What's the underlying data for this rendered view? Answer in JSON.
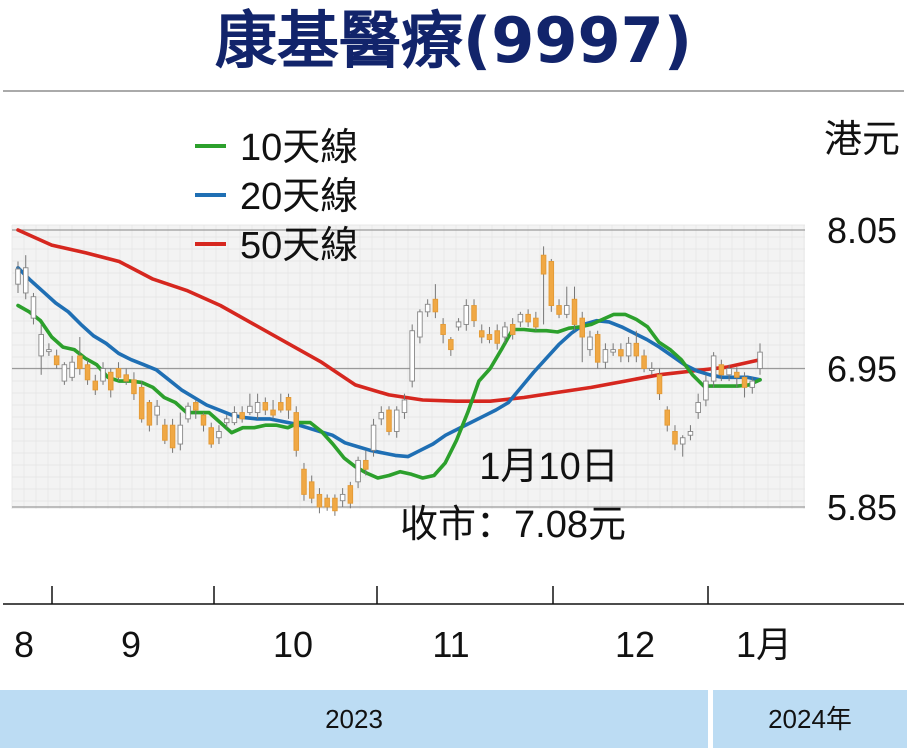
{
  "title": "康基醫療(9997)",
  "chart_data": {
    "type": "candlestick",
    "unit_label": "港元",
    "yaxis": {
      "ylim": [
        5.3,
        8.6
      ],
      "ticks": [
        {
          "value": 8.05,
          "label": "8.05"
        },
        {
          "value": 6.95,
          "label": "6.95"
        },
        {
          "value": 5.85,
          "label": "5.85"
        }
      ]
    },
    "legend": [
      {
        "name": "10天線",
        "color": "#2ca02c"
      },
      {
        "name": "20天線",
        "color": "#1f6fb4"
      },
      {
        "name": "50天線",
        "color": "#d6271f"
      }
    ],
    "month_labels": [
      "8",
      "9",
      "10",
      "11",
      "12",
      "1月"
    ],
    "annotation": {
      "line1": "1月10日",
      "line2": "收市：7.08元"
    },
    "years": [
      "2023",
      "2024年"
    ],
    "ma10": [
      7.45,
      7.4,
      7.33,
      7.2,
      7.12,
      7.1,
      7.03,
      6.98,
      6.88,
      6.85,
      6.85,
      6.84,
      6.8,
      6.72,
      6.68,
      6.6,
      6.6,
      6.6,
      6.52,
      6.44,
      6.48,
      6.48,
      6.5,
      6.5,
      6.48,
      6.52,
      6.52,
      6.45,
      6.35,
      6.24,
      6.17,
      6.12,
      6.08,
      6.1,
      6.13,
      6.11,
      6.08,
      6.1,
      6.2,
      6.38,
      6.6,
      6.85,
      6.95,
      7.1,
      7.26,
      7.26,
      7.25,
      7.25,
      7.24,
      7.27,
      7.28,
      7.3,
      7.34,
      7.38,
      7.38,
      7.34,
      7.28,
      7.16,
      7.1,
      7.02,
      6.9,
      6.81,
      6.81,
      6.81,
      6.81,
      6.82,
      6.86
    ],
    "ma20": [
      7.75,
      7.65,
      7.56,
      7.47,
      7.4,
      7.3,
      7.21,
      7.15,
      7.07,
      7.02,
      6.98,
      6.94,
      6.86,
      6.78,
      6.72,
      6.66,
      6.62,
      6.58,
      6.56,
      6.55,
      6.55,
      6.53,
      6.51,
      6.48,
      6.45,
      6.42,
      6.36,
      6.33,
      6.3,
      6.28,
      6.26,
      6.25,
      6.3,
      6.35,
      6.42,
      6.47,
      6.52,
      6.57,
      6.62,
      6.68,
      6.8,
      6.92,
      7.03,
      7.14,
      7.23,
      7.3,
      7.33,
      7.32,
      7.28,
      7.23,
      7.18,
      7.12,
      7.05,
      6.98,
      6.93,
      6.9,
      6.88,
      6.88,
      6.88,
      6.86
    ],
    "ma50": [
      8.05,
      7.93,
      7.87,
      7.8,
      7.66,
      7.57,
      7.45,
      7.3,
      7.15,
      7.0,
      6.82,
      6.74,
      6.7,
      6.69,
      6.69,
      6.72,
      6.76,
      6.8,
      6.85,
      6.9,
      6.93,
      6.96,
      7.02
    ],
    "candles": [
      [
        7.62,
        7.74,
        7.55,
        7.8
      ],
      [
        7.55,
        7.75,
        7.5,
        7.85
      ],
      [
        7.35,
        7.52,
        7.3,
        7.55
      ],
      [
        7.05,
        7.22,
        6.9,
        7.3
      ],
      [
        7.1,
        7.1,
        7.05,
        7.15
      ],
      [
        7.05,
        6.98,
        6.95,
        7.1
      ],
      [
        6.85,
        6.98,
        6.82,
        7.0
      ],
      [
        6.88,
        7.0,
        6.85,
        7.05
      ],
      [
        7.05,
        6.95,
        6.9,
        7.2
      ],
      [
        6.98,
        6.86,
        6.82,
        7.02
      ],
      [
        6.85,
        6.78,
        6.74,
        6.9
      ],
      [
        6.85,
        6.95,
        6.82,
        7.0
      ],
      [
        6.92,
        6.78,
        6.72,
        6.95
      ],
      [
        6.95,
        6.88,
        6.85,
        7.0
      ],
      [
        6.9,
        6.85,
        6.82,
        6.95
      ],
      [
        6.86,
        6.75,
        6.7,
        6.92
      ],
      [
        6.8,
        6.55,
        6.52,
        6.85
      ],
      [
        6.68,
        6.5,
        6.45,
        6.7
      ],
      [
        6.58,
        6.65,
        6.5,
        6.7
      ],
      [
        6.5,
        6.38,
        6.35,
        6.55
      ],
      [
        6.5,
        6.32,
        6.28,
        6.55
      ],
      [
        6.35,
        6.5,
        6.3,
        6.6
      ],
      [
        6.55,
        6.65,
        6.52,
        6.68
      ],
      [
        6.68,
        6.62,
        6.55,
        6.7
      ],
      [
        6.58,
        6.5,
        6.45,
        6.6
      ],
      [
        6.48,
        6.35,
        6.32,
        6.52
      ],
      [
        6.4,
        6.45,
        6.35,
        6.5
      ],
      [
        6.52,
        6.55,
        6.48,
        6.58
      ],
      [
        6.52,
        6.6,
        6.5,
        6.65
      ],
      [
        6.6,
        6.55,
        6.52,
        6.65
      ],
      [
        6.6,
        6.65,
        6.58,
        6.75
      ],
      [
        6.6,
        6.68,
        6.55,
        6.75
      ],
      [
        6.68,
        6.62,
        6.58,
        6.72
      ],
      [
        6.62,
        6.58,
        6.55,
        6.7
      ],
      [
        6.68,
        6.62,
        6.6,
        6.75
      ],
      [
        6.72,
        6.62,
        6.55,
        6.75
      ],
      [
        6.6,
        6.3,
        6.25,
        6.65
      ],
      [
        6.15,
        5.95,
        5.9,
        6.2
      ],
      [
        6.05,
        5.92,
        5.88,
        6.1
      ],
      [
        5.95,
        5.85,
        5.8,
        6.0
      ],
      [
        5.92,
        5.85,
        5.82,
        5.95
      ],
      [
        5.92,
        5.82,
        5.78,
        5.95
      ],
      [
        5.9,
        5.95,
        5.85,
        6.0
      ],
      [
        6.02,
        5.88,
        5.84,
        6.05
      ],
      [
        6.05,
        6.22,
        6.0,
        6.25
      ],
      [
        6.22,
        6.15,
        6.1,
        6.3
      ],
      [
        6.3,
        6.5,
        6.25,
        6.55
      ],
      [
        6.55,
        6.6,
        6.5,
        6.65
      ],
      [
        6.62,
        6.45,
        6.42,
        6.65
      ],
      [
        6.45,
        6.62,
        6.4,
        6.65
      ],
      [
        6.6,
        6.7,
        6.55,
        6.75
      ],
      [
        6.85,
        7.25,
        6.8,
        7.3
      ],
      [
        7.2,
        7.4,
        7.15,
        7.42
      ],
      [
        7.4,
        7.46,
        7.36,
        7.5
      ],
      [
        7.5,
        7.4,
        7.35,
        7.62
      ],
      [
        7.3,
        7.22,
        7.15,
        7.35
      ],
      [
        7.18,
        7.1,
        7.05,
        7.2
      ],
      [
        7.28,
        7.32,
        7.25,
        7.35
      ],
      [
        7.3,
        7.45,
        7.25,
        7.5
      ],
      [
        7.45,
        7.33,
        7.28,
        7.5
      ],
      [
        7.25,
        7.2,
        7.15,
        7.3
      ],
      [
        7.22,
        7.18,
        7.15,
        7.28
      ],
      [
        7.25,
        7.15,
        7.1,
        7.3
      ],
      [
        7.2,
        7.28,
        7.15,
        7.32
      ],
      [
        7.3,
        7.22,
        7.18,
        7.35
      ],
      [
        7.32,
        7.38,
        7.28,
        7.4
      ],
      [
        7.38,
        7.32,
        7.28,
        7.42
      ],
      [
        7.35,
        7.28,
        7.25,
        7.4
      ],
      [
        7.85,
        7.7,
        7.3,
        7.92
      ],
      [
        7.8,
        7.45,
        7.4,
        7.82
      ],
      [
        7.45,
        7.38,
        7.35,
        7.5
      ],
      [
        7.38,
        7.45,
        7.35,
        7.6
      ],
      [
        7.5,
        7.3,
        7.25,
        7.6
      ],
      [
        7.35,
        7.2,
        7.0,
        7.4
      ],
      [
        7.1,
        7.2,
        7.05,
        7.25
      ],
      [
        7.22,
        7.0,
        6.95,
        7.25
      ],
      [
        7.0,
        7.1,
        6.95,
        7.15
      ],
      [
        7.08,
        7.1,
        7.05,
        7.15
      ],
      [
        7.1,
        7.05,
        7.0,
        7.15
      ],
      [
        7.05,
        7.15,
        7.0,
        7.2
      ],
      [
        7.15,
        7.05,
        7.0,
        7.25
      ],
      [
        7.05,
        6.95,
        6.92,
        7.1
      ],
      [
        6.95,
        6.95,
        6.9,
        7.0
      ],
      [
        6.9,
        6.75,
        6.7,
        6.95
      ],
      [
        6.62,
        6.5,
        6.45,
        6.65
      ],
      [
        6.45,
        6.35,
        6.3,
        6.5
      ],
      [
        6.35,
        6.4,
        6.25,
        6.42
      ],
      [
        6.42,
        6.45,
        6.38,
        6.5
      ],
      [
        6.6,
        6.68,
        6.55,
        6.75
      ],
      [
        6.7,
        6.85,
        6.65,
        6.9
      ],
      [
        6.85,
        7.05,
        6.8,
        7.08
      ],
      [
        6.98,
        6.9,
        6.85,
        7.02
      ],
      [
        6.9,
        6.95,
        6.85,
        6.98
      ],
      [
        6.92,
        6.88,
        6.8,
        6.96
      ],
      [
        6.88,
        6.8,
        6.72,
        6.92
      ],
      [
        6.8,
        6.85,
        6.75,
        6.88
      ],
      [
        6.95,
        7.08,
        6.9,
        7.15
      ]
    ]
  }
}
